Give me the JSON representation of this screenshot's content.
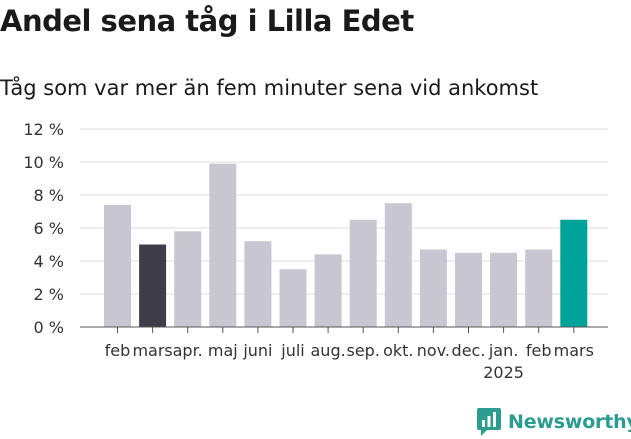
{
  "title": "Andel sena tåg i Lilla Edet",
  "subtitle": "Tåg som var mer än fem minuter sena vid ankomst",
  "logo_text": "Newsworthy",
  "chart_data": {
    "type": "bar",
    "categories": [
      "feb",
      "mars",
      "apr.",
      "maj",
      "juni",
      "juli",
      "aug.",
      "sep.",
      "okt.",
      "nov.",
      "dec.",
      "jan.",
      "feb",
      "mars"
    ],
    "year_label": "2025",
    "values": [
      7.4,
      5.0,
      5.8,
      9.9,
      5.2,
      3.5,
      4.4,
      6.5,
      7.5,
      4.7,
      4.5,
      4.5,
      4.7,
      6.5
    ],
    "bar_colors": [
      "#c8c6d0",
      "#3f3d4a",
      "#c8c6d0",
      "#c8c6d0",
      "#c8c6d0",
      "#c8c6d0",
      "#c8c6d0",
      "#c8c6d0",
      "#c8c6d0",
      "#c8c6d0",
      "#c8c6d0",
      "#c8c6d0",
      "#c8c6d0",
      "#00a399"
    ],
    "yticks": [
      "0 %",
      "2 %",
      "4 %",
      "6 %",
      "8 %",
      "10 %",
      "12 %"
    ],
    "ylim": [
      0,
      12
    ],
    "grid": true
  }
}
